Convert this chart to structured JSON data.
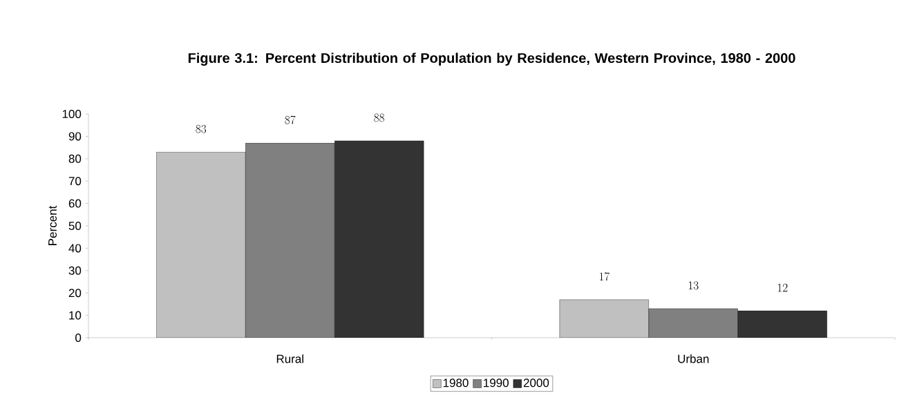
{
  "chart_data": {
    "type": "bar",
    "title": "Figure 3.1: Percent Distribution of Population by Residence, Western Province, 1980 - 2000",
    "ylabel": "Percent",
    "categories": [
      "Rural",
      "Urban"
    ],
    "series": [
      {
        "name": "1980",
        "color": "#c0c0c0",
        "values": [
          83,
          17
        ]
      },
      {
        "name": "1990",
        "color": "#808080",
        "values": [
          87,
          13
        ]
      },
      {
        "name": "2000",
        "color": "#333333",
        "values": [
          88,
          12
        ]
      }
    ],
    "ylim": [
      0,
      100
    ],
    "yticks": [
      0,
      10,
      20,
      30,
      40,
      50,
      60,
      70,
      80,
      90,
      100
    ],
    "data_labels": true,
    "legend": "bottom",
    "grid": false
  }
}
